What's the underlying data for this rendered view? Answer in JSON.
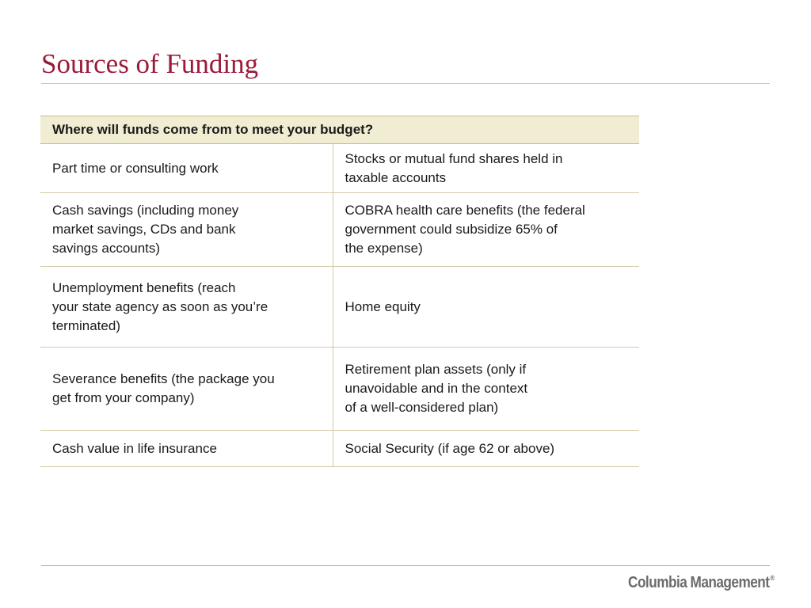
{
  "slide": {
    "title": "Sources of Funding"
  },
  "table": {
    "header": "Where will funds come from to meet your budget?",
    "rows": [
      {
        "left": "Part time or consulting work",
        "right": "Stocks or mutual fund shares held in\ntaxable accounts"
      },
      {
        "left": "Cash savings (including money\nmarket savings, CDs and bank\nsavings accounts)",
        "right": "COBRA health care benefits (the federal\ngovernment could subsidize 65% of\nthe expense)"
      },
      {
        "left": "Unemployment benefits (reach\nyour state agency as soon as you’re\nterminated)",
        "right": "Home equity"
      },
      {
        "left": "Severance benefits (the package you\nget from your company)",
        "right": "Retirement plan assets (only if\nunavoidable and in the context\nof a well-considered plan)"
      },
      {
        "left": "Cash value in life insurance",
        "right": "Social Security (if age 62 or above)"
      }
    ]
  },
  "footer": {
    "brand": "Columbia Management",
    "trademark": "®"
  },
  "colors": {
    "title": "#9b1b3a",
    "header_background": "#f1edd2",
    "rule": "#d4c8a4",
    "brand": "#6b6b6b"
  }
}
